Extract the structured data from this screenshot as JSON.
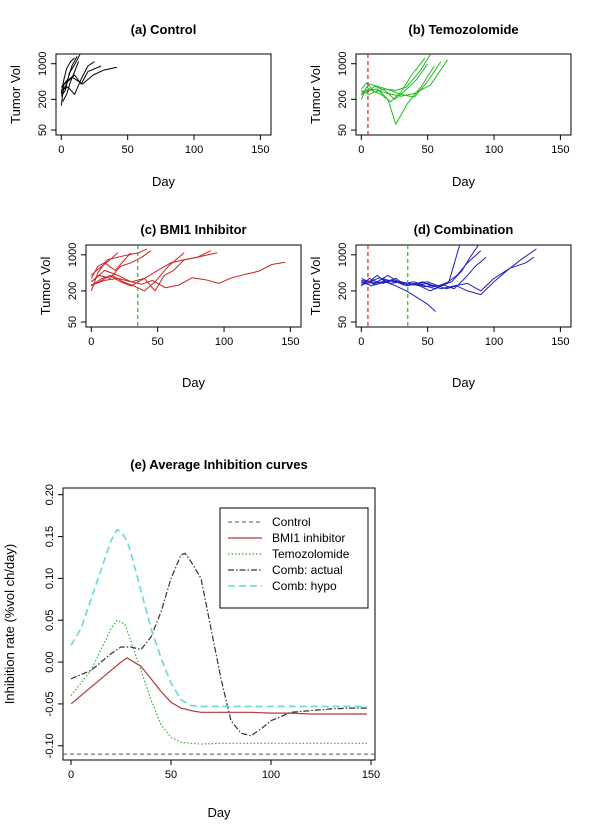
{
  "chart_data": [
    {
      "id": "a",
      "type": "line",
      "title": "(a) Control",
      "xlabel": "Day",
      "ylabel": "Tumor Vol",
      "x_ticks": [
        0,
        50,
        100,
        150
      ],
      "y_ticks": [
        50,
        200,
        1000
      ],
      "xlim": [
        -4,
        158
      ],
      "ylim": [
        40,
        1550
      ],
      "y_scale": "log",
      "color": "#000000",
      "vlines": [],
      "series": [
        {
          "x": [
            0,
            2,
            5,
            8,
            12
          ],
          "y": [
            150,
            400,
            500,
            900,
            1400
          ]
        },
        {
          "x": [
            0,
            3,
            6,
            10,
            14
          ],
          "y": [
            230,
            300,
            650,
            950,
            1500
          ]
        },
        {
          "x": [
            0,
            2,
            4,
            7,
            10
          ],
          "y": [
            270,
            500,
            800,
            1100,
            1300
          ]
        },
        {
          "x": [
            0,
            5,
            10,
            15,
            20,
            25
          ],
          "y": [
            300,
            350,
            250,
            500,
            900,
            1100
          ]
        },
        {
          "x": [
            0,
            5,
            10,
            15,
            20,
            30
          ],
          "y": [
            250,
            450,
            600,
            400,
            700,
            900
          ]
        },
        {
          "x": [
            0,
            8,
            16,
            24,
            32,
            42
          ],
          "y": [
            350,
            550,
            400,
            600,
            750,
            850
          ]
        },
        {
          "x": [
            1,
            4,
            7,
            10,
            13
          ],
          "y": [
            180,
            250,
            450,
            700,
            1100
          ]
        }
      ]
    },
    {
      "id": "b",
      "type": "line",
      "title": "(b) Temozolomide",
      "xlabel": "Day",
      "ylabel": "Tumor Vol",
      "x_ticks": [
        0,
        50,
        100,
        150
      ],
      "y_ticks": [
        50,
        200,
        1000
      ],
      "xlim": [
        -4,
        158
      ],
      "ylim": [
        40,
        1550
      ],
      "y_scale": "log",
      "color": "#22bb22",
      "vlines": [
        {
          "x": 5,
          "color": "#dd2222"
        }
      ],
      "series": [
        {
          "x": [
            0,
            4,
            8,
            15,
            22,
            30,
            38,
            48
          ],
          "y": [
            200,
            350,
            300,
            250,
            180,
            280,
            600,
            1300
          ]
        },
        {
          "x": [
            0,
            5,
            12,
            20,
            26,
            35,
            45,
            55
          ],
          "y": [
            280,
            300,
            320,
            200,
            65,
            170,
            350,
            900
          ]
        },
        {
          "x": [
            0,
            6,
            14,
            22,
            30,
            40,
            50,
            60
          ],
          "y": [
            240,
            400,
            350,
            300,
            250,
            220,
            450,
            1100
          ]
        },
        {
          "x": [
            0,
            4,
            10,
            18,
            26,
            34,
            44,
            52
          ],
          "y": [
            320,
            420,
            280,
            320,
            300,
            350,
            700,
            1500
          ]
        },
        {
          "x": [
            0,
            5,
            10,
            18,
            25,
            32,
            42,
            50
          ],
          "y": [
            260,
            280,
            360,
            300,
            200,
            280,
            500,
            1000
          ]
        },
        {
          "x": [
            0,
            6,
            12,
            20,
            30,
            40,
            52,
            65
          ],
          "y": [
            300,
            250,
            300,
            260,
            230,
            260,
            380,
            1200
          ]
        }
      ]
    },
    {
      "id": "c",
      "type": "line",
      "title": "(c) BMI1 Inhibitor",
      "xlabel": "Day",
      "ylabel": "Tumor Vol",
      "x_ticks": [
        0,
        50,
        100,
        150
      ],
      "y_ticks": [
        50,
        200,
        1000
      ],
      "xlim": [
        -4,
        158
      ],
      "ylim": [
        40,
        1550
      ],
      "y_scale": "log",
      "color": "#cc2222",
      "vlines": [
        {
          "x": 35,
          "color": "#22bb22"
        }
      ],
      "series": [
        {
          "x": [
            0,
            5,
            12,
            20,
            28,
            36,
            42
          ],
          "y": [
            200,
            450,
            800,
            900,
            1000,
            1100,
            1300
          ]
        },
        {
          "x": [
            0,
            6,
            14,
            22,
            30,
            38,
            45
          ],
          "y": [
            300,
            400,
            350,
            600,
            700,
            900,
            1200
          ]
        },
        {
          "x": [
            0,
            5,
            10,
            18,
            25,
            30
          ],
          "y": [
            350,
            600,
            700,
            500,
            800,
            1100
          ]
        },
        {
          "x": [
            0,
            8,
            16,
            24,
            32,
            40,
            48,
            58,
            70
          ],
          "y": [
            250,
            350,
            400,
            300,
            250,
            200,
            300,
            600,
            1100
          ]
        },
        {
          "x": [
            0,
            6,
            14,
            22,
            30,
            40,
            50,
            60,
            70,
            80,
            90
          ],
          "y": [
            250,
            300,
            400,
            300,
            250,
            350,
            500,
            700,
            800,
            900,
            1200
          ]
        },
        {
          "x": [
            0,
            10,
            20,
            30,
            40,
            48,
            55,
            62,
            70,
            80,
            88,
            95
          ],
          "y": [
            300,
            500,
            400,
            300,
            350,
            200,
            400,
            500,
            800,
            900,
            1000,
            1100
          ]
        },
        {
          "x": [
            0,
            10,
            20,
            30,
            38,
            46,
            56,
            66,
            76,
            86,
            96,
            106,
            116,
            126,
            136,
            146
          ],
          "y": [
            260,
            320,
            350,
            300,
            270,
            320,
            230,
            260,
            360,
            330,
            280,
            360,
            420,
            480,
            650,
            720
          ]
        },
        {
          "x": [
            0,
            4,
            8,
            14,
            20
          ],
          "y": [
            400,
            500,
            600,
            800,
            1100
          ]
        }
      ]
    },
    {
      "id": "d",
      "type": "line",
      "title": "(d) Combination",
      "xlabel": "Day",
      "ylabel": "Tumor Vol",
      "x_ticks": [
        0,
        50,
        100,
        150
      ],
      "y_ticks": [
        50,
        200,
        1000
      ],
      "xlim": [
        -4,
        158
      ],
      "ylim": [
        40,
        1550
      ],
      "y_scale": "log",
      "color": "#1f1fbf",
      "vlines": [
        {
          "x": 5,
          "color": "#dd2222"
        },
        {
          "x": 35,
          "color": "#22bb22"
        }
      ],
      "series": [
        {
          "x": [
            0,
            6,
            12,
            20,
            28,
            36,
            44,
            52,
            60,
            68,
            76,
            82,
            88
          ],
          "y": [
            250,
            350,
            300,
            400,
            300,
            280,
            250,
            200,
            250,
            300,
            500,
            900,
            1500
          ]
        },
        {
          "x": [
            0,
            8,
            16,
            24,
            32,
            40,
            48,
            56,
            64,
            72,
            80,
            90
          ],
          "y": [
            300,
            250,
            350,
            300,
            280,
            300,
            250,
            220,
            280,
            400,
            700,
            1200
          ]
        },
        {
          "x": [
            0,
            5,
            10,
            18,
            26,
            34,
            42,
            50,
            56
          ],
          "y": [
            280,
            320,
            260,
            300,
            250,
            200,
            150,
            110,
            80
          ]
        },
        {
          "x": [
            0,
            6,
            14,
            22,
            30,
            38,
            46,
            54,
            62,
            70,
            78,
            86,
            94
          ],
          "y": [
            320,
            300,
            360,
            280,
            300,
            260,
            300,
            240,
            260,
            220,
            350,
            600,
            900
          ]
        },
        {
          "x": [
            0,
            8,
            16,
            24,
            32,
            40,
            48,
            56,
            64,
            72,
            80,
            90,
            100,
            110,
            120,
            132
          ],
          "y": [
            260,
            300,
            280,
            320,
            260,
            280,
            240,
            260,
            220,
            250,
            200,
            170,
            300,
            500,
            800,
            1300
          ]
        },
        {
          "x": [
            0,
            10,
            20,
            30,
            40,
            50,
            60,
            70,
            80,
            90,
            100,
            112,
            124,
            130
          ],
          "y": [
            300,
            280,
            320,
            300,
            260,
            280,
            220,
            250,
            280,
            200,
            350,
            550,
            700,
            900
          ]
        },
        {
          "x": [
            0,
            6,
            12,
            18,
            26,
            34,
            42,
            50,
            58,
            66,
            74
          ],
          "y": [
            350,
            300,
            400,
            300,
            350,
            250,
            280,
            300,
            250,
            300,
            1500
          ]
        }
      ]
    },
    {
      "id": "e",
      "type": "line",
      "title": "(e) Average Inhibition curves",
      "xlabel": "Day",
      "ylabel": "Inhibition rate (%vol ch/day)",
      "x_ticks": [
        0,
        50,
        100,
        150
      ],
      "y_ticks": [
        -0.1,
        -0.05,
        0.0,
        0.05,
        0.1,
        0.15,
        0.2
      ],
      "y_tick_labels": [
        "-0.10",
        "-0.05",
        "0.00",
        "0.05",
        "0.10",
        "0.15",
        "0.20"
      ],
      "xlim": [
        -4,
        152
      ],
      "ylim": [
        -0.117,
        0.208
      ],
      "legend_position": "top-right",
      "series": [
        {
          "name": "Control",
          "color": "#555555",
          "dash": "4,3",
          "width": 1,
          "x": [
            -4,
            152
          ],
          "y": [
            -0.11,
            -0.11
          ]
        },
        {
          "name": "BMI1 inhibitor",
          "color": "#b03a3a",
          "dash": "",
          "width": 1.2,
          "x": [
            0,
            5,
            10,
            15,
            20,
            25,
            28,
            35,
            40,
            45,
            50,
            55,
            60,
            65,
            70,
            80,
            90,
            100,
            110,
            120,
            130,
            140,
            148
          ],
          "y": [
            -0.05,
            -0.04,
            -0.03,
            -0.02,
            -0.01,
            0.0,
            0.005,
            -0.005,
            -0.02,
            -0.035,
            -0.048,
            -0.055,
            -0.058,
            -0.06,
            -0.06,
            -0.06,
            -0.06,
            -0.061,
            -0.061,
            -0.062,
            -0.062,
            -0.062,
            -0.062
          ]
        },
        {
          "name": "Temozolomide",
          "color": "#3aaa3a",
          "dash": "1.5,2",
          "width": 1.2,
          "x": [
            0,
            5,
            10,
            15,
            20,
            23,
            27,
            30,
            35,
            40,
            45,
            50,
            55,
            60,
            65,
            75,
            90,
            110,
            130,
            148
          ],
          "y": [
            -0.04,
            -0.025,
            -0.01,
            0.015,
            0.04,
            0.05,
            0.045,
            0.025,
            -0.01,
            -0.045,
            -0.075,
            -0.09,
            -0.096,
            -0.097,
            -0.098,
            -0.097,
            -0.097,
            -0.097,
            -0.097,
            -0.097
          ]
        },
        {
          "name": "Comb: actual",
          "color": "#333333",
          "dash": "6,2,1.5,2",
          "width": 1.2,
          "x": [
            0,
            5,
            10,
            15,
            20,
            25,
            30,
            35,
            40,
            45,
            50,
            55,
            57,
            60,
            65,
            70,
            75,
            80,
            85,
            90,
            95,
            100,
            105,
            110,
            120,
            130,
            140,
            148
          ],
          "y": [
            -0.02,
            -0.015,
            -0.01,
            0.0,
            0.01,
            0.018,
            0.018,
            0.015,
            0.03,
            0.06,
            0.1,
            0.128,
            0.13,
            0.12,
            0.1,
            0.04,
            -0.02,
            -0.07,
            -0.085,
            -0.088,
            -0.08,
            -0.07,
            -0.065,
            -0.06,
            -0.058,
            -0.056,
            -0.055,
            -0.055
          ]
        },
        {
          "name": "Comb: hypo",
          "color": "#66d9d9",
          "dash": "7,4",
          "width": 1.6,
          "x": [
            0,
            5,
            10,
            15,
            20,
            23,
            25,
            28,
            30,
            35,
            40,
            45,
            50,
            55,
            60,
            65,
            70,
            80,
            90,
            100,
            110,
            120,
            130,
            140,
            148
          ],
          "y": [
            0.02,
            0.04,
            0.075,
            0.11,
            0.145,
            0.158,
            0.156,
            0.145,
            0.13,
            0.085,
            0.04,
            0.005,
            -0.025,
            -0.045,
            -0.052,
            -0.053,
            -0.053,
            -0.053,
            -0.053,
            -0.053,
            -0.053,
            -0.053,
            -0.053,
            -0.053,
            -0.053
          ]
        }
      ]
    }
  ]
}
